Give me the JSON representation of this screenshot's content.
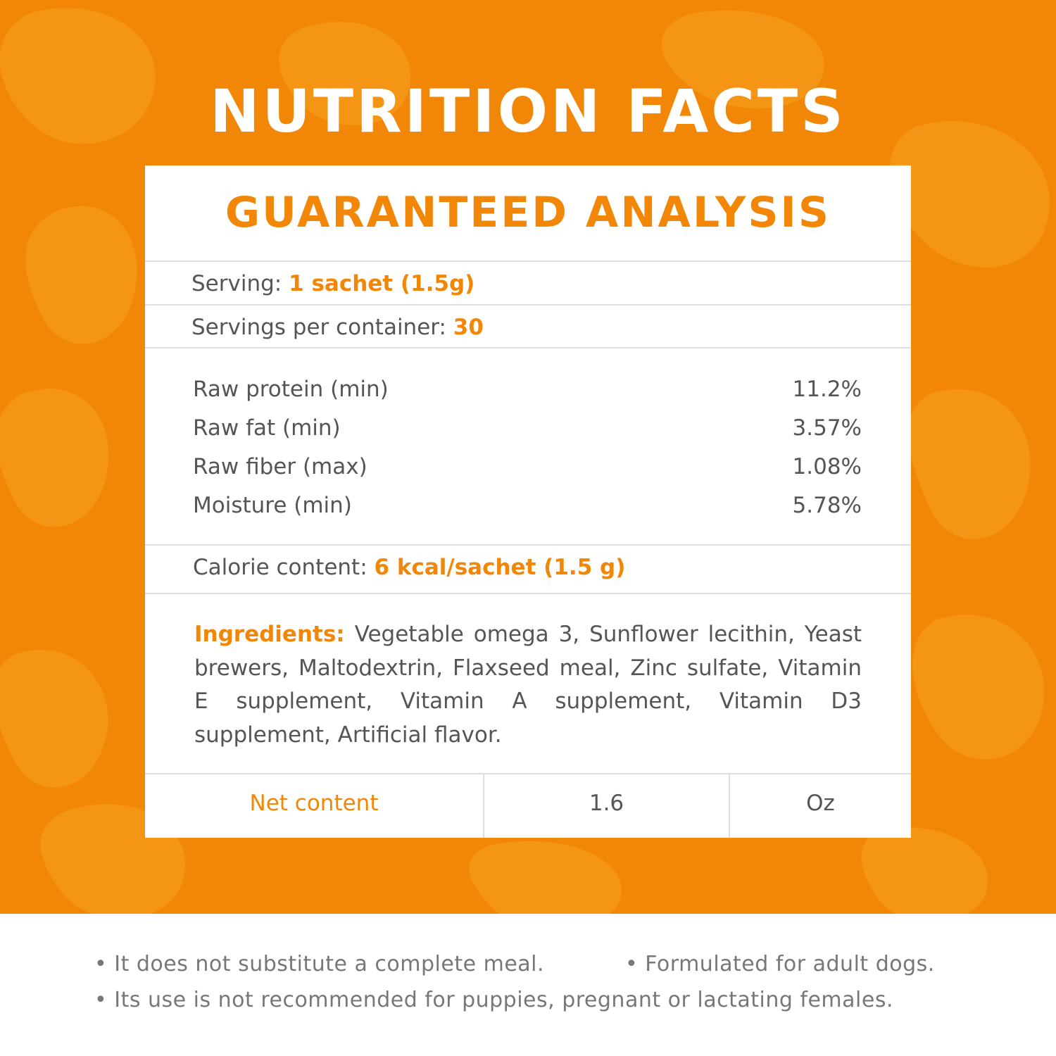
{
  "header": {
    "title": "NUTRITION FACTS"
  },
  "colors": {
    "brand": "#f28707",
    "blob": "#f59a1c",
    "text": "#555555",
    "note": "#777777"
  },
  "card": {
    "title": "GUARANTEED ANALYSIS",
    "serving": {
      "label": "Serving:",
      "value": "1 sachet (1.5g)"
    },
    "servings_per_container": {
      "label": "Servings per container:",
      "value": "30"
    },
    "nutrients": [
      {
        "name": "Raw protein (min)",
        "value": "11.2%"
      },
      {
        "name": "Raw fat (min)",
        "value": "3.57%"
      },
      {
        "name": "Raw fiber (max)",
        "value": "1.08%"
      },
      {
        "name": "Moisture (min)",
        "value": "5.78%"
      }
    ],
    "calorie": {
      "label": "Calorie content:",
      "value": "6 kcal/sachet (1.5 g)"
    },
    "ingredients": {
      "label": "Ingredients:",
      "text": "Vegetable omega 3, Sunflower lecithin, Yeast brewers, Maltodextrin, Flaxseed meal, Zinc sulfate, Vitamin E supplement, Vitamin A supplement, Vitamin D3 supplement, Artificial flavor."
    },
    "net_content": {
      "label": "Net content",
      "amount": "1.6",
      "unit": "Oz"
    }
  },
  "notes": {
    "note1": "It does not substitute a complete meal.",
    "note2": "Formulated for adult dogs.",
    "note3": "Its use is not recommended for puppies, pregnant or lactating females."
  }
}
